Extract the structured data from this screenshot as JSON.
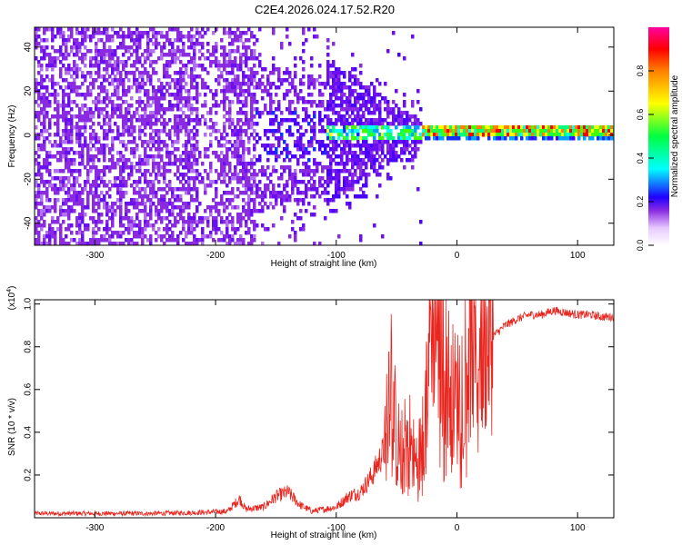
{
  "title": "C2E4.2026.024.17.52.R20",
  "chart_data": [
    {
      "type": "heatmap",
      "name": "spectrogram",
      "xlabel": "Height of straight line (km)",
      "ylabel": "Frequency (Hz)",
      "xlim": [
        -350,
        130
      ],
      "ylim": [
        -50,
        49
      ],
      "xticks": [
        -300,
        -200,
        -100,
        0,
        100
      ],
      "yticks": [
        -40,
        -20,
        0,
        20,
        40
      ],
      "colorbar": {
        "label": "Normalized spectral amplitude",
        "range": [
          0,
          1
        ],
        "ticks": [
          0.0,
          0.2,
          0.4,
          0.6,
          0.8
        ],
        "tick_labels": [
          "0.0",
          "0.2",
          "0.4",
          "0.6",
          "0.8"
        ],
        "colors": [
          "#ffffff",
          "#e0c0ff",
          "#8a2be2",
          "#5000ff",
          "#0000ff",
          "#00ffff",
          "#00ff40",
          "#ffff00",
          "#ff8000",
          "#ff0000",
          "#ff00a0"
        ]
      },
      "regions": [
        {
          "from_km": -350,
          "to_km": -168,
          "pattern": "broadband noise",
          "level": 0.15
        },
        {
          "from_km": -168,
          "to_km": -110,
          "pattern": "broadband noise",
          "level": 0.2
        },
        {
          "from_km": -110,
          "to_km": -30,
          "pattern": "tapering band around 0 Hz",
          "level": 0.35
        },
        {
          "from_km": -30,
          "to_km": 130,
          "pattern": "narrow band near 2 Hz",
          "level": 0.75
        }
      ]
    },
    {
      "type": "line",
      "name": "snr",
      "xlabel": "Height of straight line (km)",
      "ylabel": "SNR (10 * v/v)",
      "y_multiplier": "(x10",
      "y_multiplier_exp": "4",
      "xlim": [
        -350,
        130
      ],
      "ylim": [
        0,
        1.02
      ],
      "xticks": [
        -300,
        -200,
        -100,
        0,
        100
      ],
      "yticks": [
        0.2,
        0.4,
        0.6,
        0.8,
        1.0
      ],
      "color": "#e8251e",
      "series": [
        {
          "name": "SNR",
          "x": [
            -350,
            -300,
            -250,
            -210,
            -190,
            -180,
            -175,
            -160,
            -150,
            -140,
            -130,
            -120,
            -100,
            -90,
            -80,
            -70,
            -60,
            -55,
            -52,
            -50,
            -45,
            -40,
            -35,
            -30,
            -25,
            -22,
            -20,
            -15,
            -10,
            -5,
            0,
            5,
            10,
            20,
            30,
            40,
            50,
            60,
            70,
            80,
            90,
            100,
            110,
            120,
            130
          ],
          "y": [
            0.02,
            0.02,
            0.02,
            0.025,
            0.03,
            0.09,
            0.04,
            0.05,
            0.1,
            0.12,
            0.06,
            0.03,
            0.05,
            0.1,
            0.12,
            0.2,
            0.32,
            0.8,
            0.5,
            0.35,
            0.3,
            0.4,
            0.25,
            0.3,
            0.6,
            0.95,
            1.0,
            0.85,
            0.75,
            0.6,
            0.55,
            0.7,
            0.78,
            0.78,
            0.85,
            0.9,
            0.93,
            0.95,
            0.95,
            0.97,
            0.96,
            0.95,
            0.95,
            0.94,
            0.94
          ]
        }
      ]
    }
  ]
}
